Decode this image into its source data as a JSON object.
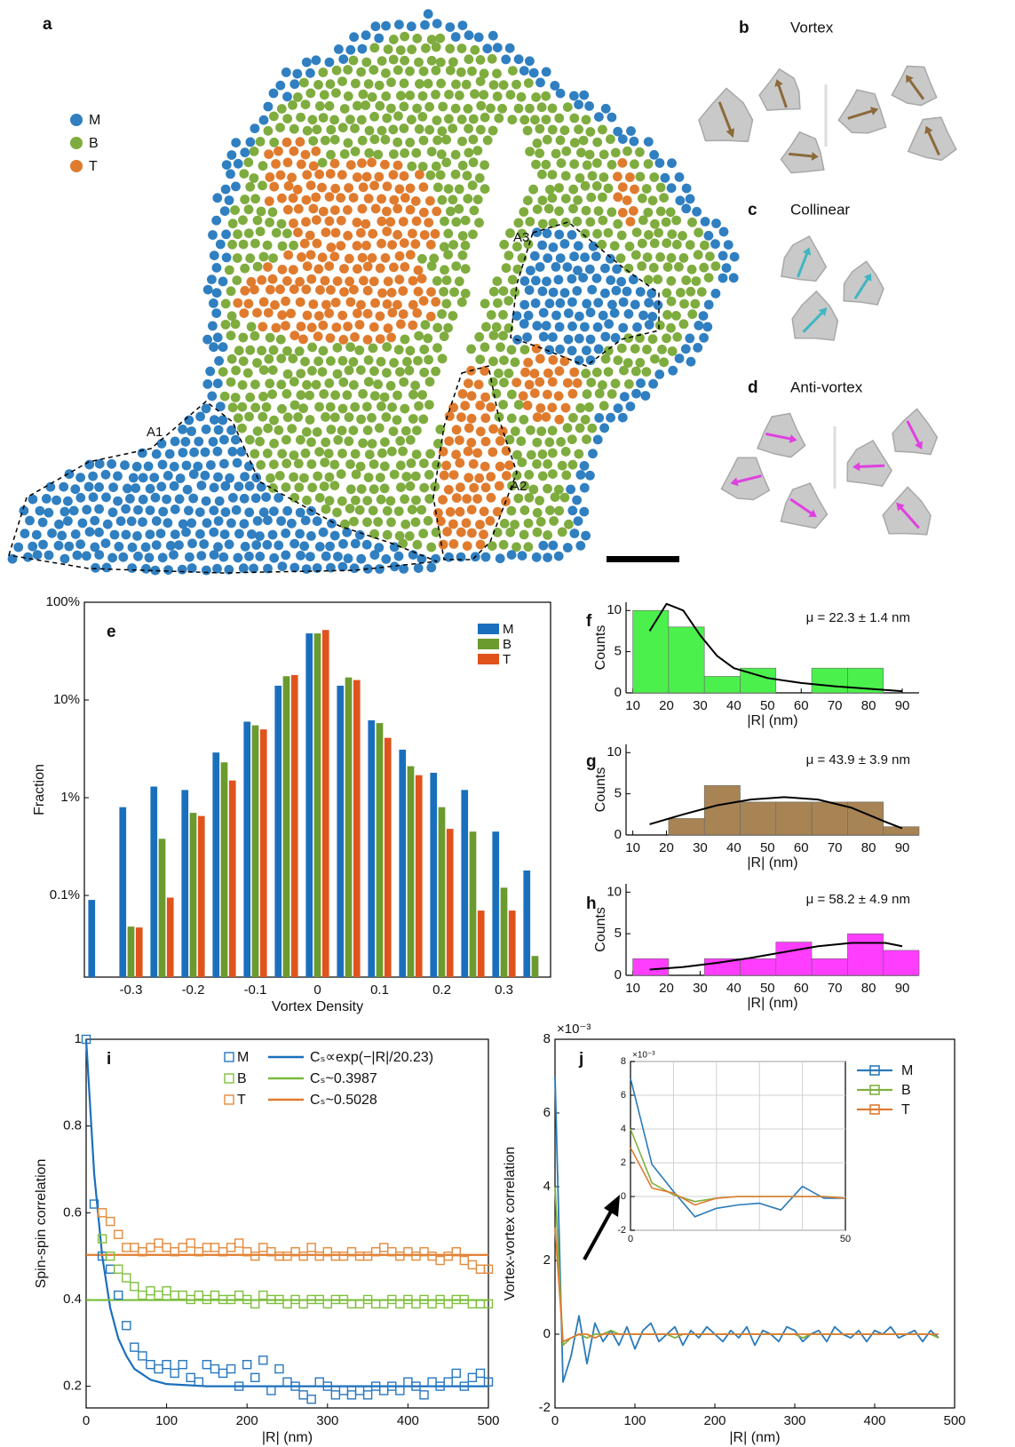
{
  "diagrams": [
    {
      "panel": "b",
      "title": "Vortex"
    },
    {
      "panel": "c",
      "title": "Collinear"
    },
    {
      "panel": "d",
      "title": "Anti-vortex"
    }
  ],
  "chart_data": [
    {
      "type": "map",
      "panel": "a",
      "series": [
        {
          "name": "M",
          "color": "#2f7fc1"
        },
        {
          "name": "B",
          "color": "#7fac3e"
        },
        {
          "name": "T",
          "color": "#e07b2e"
        }
      ],
      "regions": [
        "A1",
        "A2",
        "A3"
      ]
    },
    {
      "type": "bar",
      "panel": "e",
      "x": [
        -0.35,
        -0.3,
        -0.25,
        -0.2,
        -0.15,
        -0.1,
        -0.05,
        0,
        0.05,
        0.1,
        0.15,
        0.2,
        0.25,
        0.3,
        0.35
      ],
      "xlim": [
        -0.375,
        0.375
      ],
      "xticks": [
        -0.3,
        -0.2,
        -0.1,
        0,
        0.1,
        0.2,
        0.3
      ],
      "xlabel": "Vortex Density",
      "ylabel": "Fraction",
      "log_y": true,
      "ylim": [
        0.0146,
        100
      ],
      "yticks": [
        {
          "value": 0.1,
          "label": "0.1%"
        },
        {
          "value": 1,
          "label": "1%"
        },
        {
          "value": 10,
          "label": "10%"
        },
        {
          "value": 100,
          "label": "100%"
        }
      ],
      "legend": "upper right",
      "series": [
        {
          "name": "M",
          "color": "#1a6fbd",
          "values": [
            0.09,
            0.8,
            1.3,
            1.2,
            2.9,
            6.0,
            14,
            48,
            14,
            6.2,
            3.1,
            1.8,
            1.2,
            0.45,
            0.18
          ]
        },
        {
          "name": "B",
          "color": "#6b9a2e",
          "values": [
            null,
            0.048,
            0.38,
            0.7,
            2.3,
            5.5,
            17.5,
            48,
            17,
            5.8,
            2.1,
            0.8,
            0.45,
            0.12,
            0.024
          ]
        },
        {
          "name": "T",
          "color": "#e0531d",
          "values": [
            null,
            0.047,
            0.095,
            0.65,
            1.5,
            5.0,
            18,
            52,
            16,
            4.1,
            1.7,
            0.48,
            0.07,
            0.07,
            null
          ]
        }
      ]
    },
    {
      "type": "histogram",
      "panel": "f",
      "bins": [
        10,
        20.625,
        31.25,
        41.875,
        52.5,
        63.125,
        73.75,
        84.375,
        95
      ],
      "counts": [
        10,
        8,
        2,
        3,
        0,
        3,
        3,
        0
      ],
      "color": "#4cf04c",
      "fit": {
        "x": [
          15,
          20,
          25,
          30,
          35,
          40,
          50,
          60,
          70,
          80,
          90
        ],
        "values": [
          7.5,
          10.8,
          10,
          7,
          4.5,
          3,
          1.8,
          1.2,
          0.8,
          0.5,
          0.2
        ],
        "color": "#000000"
      },
      "annotation": "μ = 22.3 ± 1.4 nm",
      "xlim": [
        8,
        95
      ],
      "xticks": [
        10,
        20,
        30,
        40,
        50,
        60,
        70,
        80,
        90
      ],
      "ylim": [
        0,
        11
      ],
      "yticks": [
        0,
        5,
        10
      ],
      "xlabel": "|R| (nm)",
      "ylabel": "Counts"
    },
    {
      "type": "histogram",
      "panel": "g",
      "bins": [
        10,
        20.625,
        31.25,
        41.875,
        52.5,
        63.125,
        73.75,
        84.375,
        95
      ],
      "counts": [
        0,
        2,
        6,
        4,
        4,
        4,
        4,
        1
      ],
      "color": "#a88455",
      "fit": {
        "x": [
          15,
          25,
          35,
          45,
          55,
          65,
          75,
          85,
          90
        ],
        "values": [
          1.3,
          2.5,
          3.6,
          4.3,
          4.6,
          4.3,
          3.3,
          1.6,
          0.8
        ],
        "color": "#000000"
      },
      "annotation": "μ = 43.9 ± 3.9 nm",
      "xlim": [
        8,
        95
      ],
      "xticks": [
        10,
        20,
        30,
        40,
        50,
        60,
        70,
        80,
        90
      ],
      "ylim": [
        0,
        11
      ],
      "yticks": [
        0,
        5,
        10
      ],
      "xlabel": "|R| (nm)",
      "ylabel": "Counts"
    },
    {
      "type": "histogram",
      "panel": "h",
      "bins": [
        10,
        20.625,
        31.25,
        41.875,
        52.5,
        63.125,
        73.75,
        84.375,
        95
      ],
      "counts": [
        2,
        0,
        2,
        2,
        4,
        2,
        5,
        3
      ],
      "color": "#ff3dff",
      "fit": {
        "x": [
          15,
          25,
          35,
          45,
          55,
          65,
          75,
          85,
          90
        ],
        "values": [
          0.7,
          1,
          1.5,
          2.1,
          2.8,
          3.5,
          3.9,
          3.9,
          3.5
        ],
        "color": "#000000"
      },
      "annotation": "μ = 58.2 ± 4.9 nm",
      "xlim": [
        8,
        95
      ],
      "xticks": [
        10,
        20,
        30,
        40,
        50,
        60,
        70,
        80,
        90
      ],
      "ylim": [
        0,
        11
      ],
      "yticks": [
        0,
        5,
        10
      ],
      "xlabel": "|R| (nm)",
      "ylabel": "Counts"
    },
    {
      "type": "scatter",
      "panel": "i",
      "x": [
        0,
        10,
        20,
        30,
        40,
        50,
        60,
        70,
        80,
        90,
        100,
        110,
        120,
        130,
        140,
        150,
        160,
        170,
        180,
        190,
        200,
        210,
        220,
        230,
        240,
        250,
        260,
        270,
        280,
        290,
        300,
        310,
        320,
        330,
        340,
        350,
        360,
        370,
        380,
        390,
        400,
        410,
        420,
        430,
        440,
        450,
        460,
        470,
        480,
        490,
        500
      ],
      "series": [
        {
          "name": "M",
          "color": "#2677c0",
          "values": [
            1.0,
            0.62,
            0.5,
            0.47,
            0.41,
            0.34,
            0.29,
            0.27,
            0.25,
            0.24,
            0.25,
            0.23,
            0.25,
            0.22,
            0.21,
            0.25,
            0.24,
            0.23,
            0.24,
            0.2,
            0.25,
            0.22,
            0.26,
            0.19,
            0.24,
            0.21,
            0.2,
            0.18,
            0.17,
            0.21,
            0.2,
            0.18,
            0.19,
            0.18,
            0.19,
            0.18,
            0.2,
            0.19,
            0.2,
            0.19,
            0.21,
            0.2,
            0.18,
            0.21,
            0.2,
            0.21,
            0.23,
            0.2,
            0.22,
            0.23,
            0.21
          ]
        },
        {
          "name": "B",
          "color": "#7fbf3f",
          "values": [
            null,
            null,
            0.54,
            0.5,
            0.47,
            0.45,
            0.43,
            0.41,
            0.42,
            0.41,
            0.42,
            0.41,
            0.41,
            0.4,
            0.41,
            0.4,
            0.41,
            0.4,
            0.4,
            0.41,
            0.4,
            0.39,
            0.41,
            0.4,
            0.4,
            0.39,
            0.4,
            0.39,
            0.4,
            0.4,
            0.39,
            0.4,
            0.4,
            0.39,
            0.39,
            0.4,
            0.39,
            0.39,
            0.4,
            0.39,
            0.4,
            0.39,
            0.4,
            0.39,
            0.4,
            0.39,
            0.4,
            0.4,
            0.39,
            0.39,
            0.39
          ]
        },
        {
          "name": "T",
          "color": "#e38a3c",
          "values": [
            null,
            null,
            0.6,
            0.58,
            0.55,
            0.52,
            0.52,
            0.51,
            0.52,
            0.53,
            0.52,
            0.51,
            0.52,
            0.53,
            0.51,
            0.52,
            0.52,
            0.51,
            0.52,
            0.53,
            0.51,
            0.5,
            0.52,
            0.51,
            0.5,
            0.5,
            0.51,
            0.5,
            0.52,
            0.5,
            0.51,
            0.5,
            0.5,
            0.51,
            0.5,
            0.5,
            0.51,
            0.52,
            0.51,
            0.5,
            0.51,
            0.5,
            0.51,
            0.5,
            0.49,
            0.5,
            0.51,
            0.49,
            0.48,
            0.47,
            0.47
          ]
        }
      ],
      "fits": [
        {
          "name": "Cₛ∝exp(−|R|/20.23)",
          "color": "#1a6fbd",
          "x": [
            0,
            10,
            20,
            30,
            40,
            50,
            60,
            80,
            100,
            150,
            200,
            300,
            400,
            500
          ],
          "values": [
            1.0,
            0.69,
            0.5,
            0.38,
            0.31,
            0.27,
            0.24,
            0.215,
            0.205,
            0.2,
            0.2,
            0.2,
            0.2,
            0.2
          ]
        },
        {
          "name": "Cₛ~0.3987",
          "color": "#7aba3a",
          "value": 0.3987
        },
        {
          "name": "Cₛ~0.5028",
          "color": "#e07b2e",
          "value": 0.5028
        }
      ],
      "xlim": [
        0,
        500
      ],
      "xticks": [
        0,
        100,
        200,
        300,
        400,
        500
      ],
      "ylim": [
        0.15,
        1.0
      ],
      "yticks": [
        0.2,
        0.4,
        0.6,
        0.8,
        1
      ],
      "xlabel": "|R| (nm)",
      "ylabel": "Spin-spin correlation"
    },
    {
      "type": "line",
      "panel": "j",
      "x": [
        0,
        10,
        20,
        30,
        40,
        50,
        60,
        70,
        80,
        90,
        100,
        110,
        120,
        130,
        140,
        150,
        160,
        170,
        180,
        190,
        200,
        210,
        220,
        230,
        240,
        250,
        260,
        270,
        280,
        290,
        300,
        310,
        320,
        330,
        340,
        350,
        360,
        370,
        380,
        390,
        400,
        410,
        420,
        430,
        440,
        450,
        460,
        470,
        480
      ],
      "series": [
        {
          "name": "M",
          "color": "#2a7ab8",
          "values": [
            7.0,
            -1.3,
            -0.6,
            0.5,
            -0.8,
            0.3,
            -0.2,
            0.1,
            -0.3,
            0.2,
            -0.4,
            0.1,
            0.3,
            -0.2,
            0.0,
            0.2,
            -0.3,
            0.1,
            -0.1,
            0.2,
            0.0,
            -0.2,
            0.1,
            -0.1,
            0.2,
            -0.3,
            0.1,
            0.0,
            -0.2,
            0.2,
            0.1,
            -0.2,
            0.0,
            0.1,
            -0.2,
            0.2,
            0.0,
            -0.1,
            0.1,
            -0.2,
            0.1,
            0.0,
            0.2,
            -0.1,
            0.0,
            0.1,
            -0.2,
            0.1,
            -0.1
          ]
        },
        {
          "name": "B",
          "color": "#80b040",
          "values": [
            4.0,
            -0.3,
            -0.1,
            0,
            -0.1,
            0,
            0,
            0.1,
            0,
            0,
            0,
            0,
            0,
            0,
            0,
            -0.1,
            0,
            0,
            0,
            0,
            0,
            0,
            0,
            0,
            0,
            0,
            0,
            0,
            0,
            0,
            0,
            -0.1,
            0,
            0,
            0,
            0,
            0,
            0,
            0,
            0,
            0,
            0,
            0,
            0,
            0,
            0,
            0,
            0,
            -0.1
          ]
        },
        {
          "name": "T",
          "color": "#e07b30",
          "values": [
            2.9,
            -0.2,
            -0.1,
            0,
            0,
            -0.1,
            0,
            0,
            0,
            0,
            0,
            0,
            0,
            0,
            0,
            0,
            0,
            0,
            0,
            0,
            0,
            0,
            0,
            0,
            0,
            0,
            0,
            0,
            0,
            0,
            0,
            0,
            0,
            0,
            0,
            0,
            0,
            0,
            0,
            0,
            0,
            0,
            0,
            0,
            0,
            0,
            0,
            0,
            0
          ]
        }
      ],
      "xlim": [
        0,
        500
      ],
      "xticks": [
        0,
        100,
        200,
        300,
        400,
        500
      ],
      "ylim": [
        -2,
        8
      ],
      "yticks": [
        -2,
        0,
        2,
        4,
        6,
        8
      ],
      "y_multiplier": "×10⁻³",
      "xlabel": "|R| (nm)",
      "ylabel": "Vortex-vortex correlation",
      "legend": "upper right",
      "inset": {
        "x": [
          0,
          5,
          10,
          15,
          20,
          25,
          30,
          35,
          40,
          45,
          50
        ],
        "series": [
          {
            "values": [
              7,
              1.9,
              0.3,
              -1.2,
              -0.7,
              -0.5,
              -0.4,
              -0.8,
              0.6,
              -0.1,
              -0.1
            ]
          },
          {
            "values": [
              4,
              0.8,
              0.1,
              -0.3,
              -0.1,
              0,
              0,
              0,
              0,
              0,
              -0.1
            ]
          },
          {
            "values": [
              2.9,
              0.5,
              0.2,
              -0.5,
              -0.1,
              0,
              0,
              0,
              0,
              0,
              -0.1
            ]
          }
        ],
        "xlim": [
          0,
          50
        ],
        "xticks": [
          0,
          50
        ],
        "xgrid": [
          10,
          20,
          30,
          40
        ],
        "ylim": [
          -2,
          8
        ],
        "yticks": [
          -2,
          0,
          2,
          4,
          6,
          8
        ],
        "y_multiplier": "×10⁻³",
        "grid": true
      }
    }
  ]
}
